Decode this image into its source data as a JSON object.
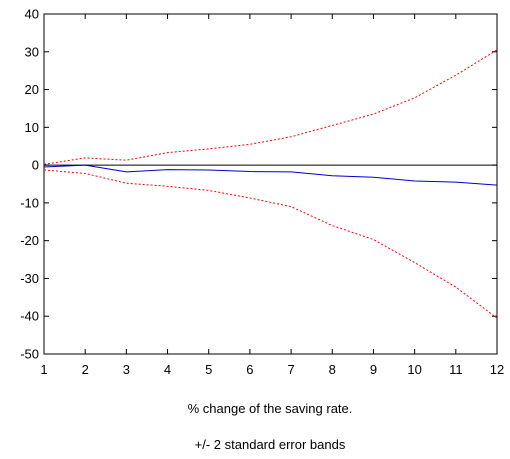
{
  "chart_data": {
    "type": "line",
    "x": [
      1,
      2,
      3,
      4,
      5,
      6,
      7,
      8,
      9,
      10,
      11,
      12
    ],
    "xlim": [
      1,
      12
    ],
    "ylim": [
      -50,
      40
    ],
    "x_ticks": [
      "1",
      "2",
      "3",
      "4",
      "5",
      "6",
      "7",
      "8",
      "9",
      "10",
      "11",
      "12"
    ],
    "y_ticks": [
      "40",
      "30",
      "20",
      "10",
      "0",
      "-10",
      "-20",
      "-30",
      "-40",
      "-50"
    ],
    "grid": false,
    "zero_line": true,
    "captions": [
      "% change of the saving rate.",
      "+/- 2 standard error bands"
    ],
    "series": [
      {
        "role": "estimate",
        "color": "#0000cc",
        "style": "solid",
        "values": [
          -0.5,
          0.0,
          -1.8,
          -1.2,
          -1.3,
          -1.7,
          -1.8,
          -2.8,
          -3.2,
          -4.2,
          -4.5,
          -5.3
        ]
      },
      {
        "role": "upper-band",
        "color": "#ff0000",
        "style": "dotted",
        "values": [
          0.2,
          1.9,
          1.3,
          3.3,
          4.3,
          5.5,
          7.5,
          10.5,
          13.5,
          17.8,
          23.8,
          30.5
        ]
      },
      {
        "role": "lower-band",
        "color": "#ff0000",
        "style": "dotted",
        "values": [
          -1.3,
          -2.2,
          -4.8,
          -5.6,
          -6.7,
          -8.7,
          -11.0,
          -16.0,
          -19.7,
          -25.8,
          -32.3,
          -40.5
        ]
      }
    ]
  }
}
